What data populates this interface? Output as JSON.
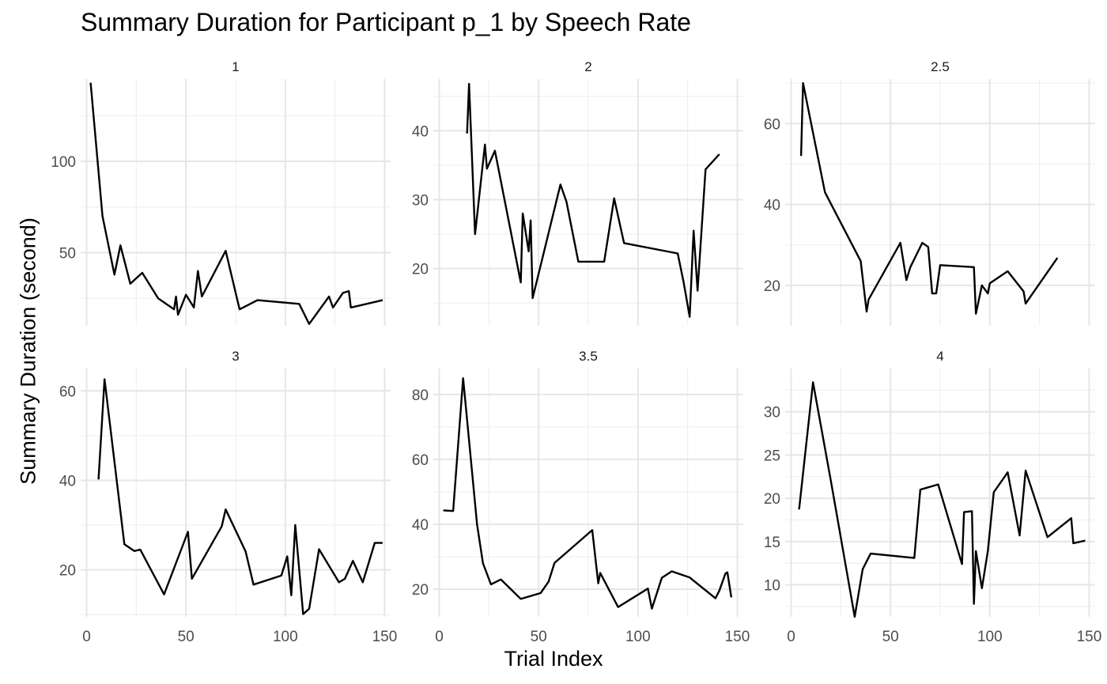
{
  "chart_data": {
    "type": "line",
    "title": "Summary Duration for Participant p_1 by Speech Rate",
    "xlabel": "Trial Index",
    "ylabel": "Summary Duration (second)",
    "x_ticks": [
      0,
      50,
      100,
      150
    ],
    "xlim": [
      -3,
      153
    ],
    "grid": true,
    "line_color": "#000000",
    "panels": [
      {
        "label": "1",
        "ylim": [
          10,
          145
        ],
        "y_ticks": [
          50,
          100
        ],
        "x": [
          2,
          8,
          14,
          17,
          22,
          28,
          36,
          44,
          45,
          46,
          50,
          54,
          56,
          58,
          70,
          77,
          86,
          107,
          112,
          122,
          124,
          129,
          132,
          133,
          149
        ],
        "y": [
          143,
          70,
          38,
          54,
          33,
          39,
          25,
          19,
          26,
          16,
          27,
          20,
          40,
          26,
          51,
          19,
          24,
          22,
          11,
          26,
          20,
          28,
          29,
          20,
          24
        ]
      },
      {
        "label": "2",
        "ylim": [
          11.7,
          47.5
        ],
        "y_ticks": [
          20,
          30,
          40
        ],
        "x": [
          14,
          15,
          18,
          23,
          24,
          28,
          41,
          42,
          45,
          46,
          47,
          61,
          64,
          70,
          83,
          88,
          93,
          120,
          123,
          126,
          128,
          130,
          134,
          141
        ],
        "y": [
          39.6,
          46.8,
          25,
          38,
          34.5,
          37.1,
          18,
          28,
          22.5,
          27,
          15.7,
          32.2,
          29.7,
          21,
          21,
          30.2,
          23.7,
          22.2,
          18,
          13,
          25.5,
          16.8,
          34.4,
          36.6
        ]
      },
      {
        "label": "2.5",
        "ylim": [
          10,
          71
        ],
        "y_ticks": [
          20,
          40,
          60
        ],
        "x": [
          5,
          6,
          17,
          35,
          38,
          39,
          55,
          58,
          60,
          62,
          66,
          69,
          71,
          73,
          75,
          92,
          93,
          96,
          99,
          100,
          109,
          117,
          118,
          134
        ],
        "y": [
          52,
          70,
          43,
          26,
          13.5,
          16.5,
          30.5,
          21.3,
          24.5,
          26.5,
          30.5,
          29.5,
          18,
          18,
          25,
          24.5,
          13,
          20,
          18,
          20.5,
          23.5,
          18.5,
          15.5,
          26.8
        ]
      },
      {
        "label": "3",
        "ylim": [
          9.5,
          65
        ],
        "y_ticks": [
          20,
          40,
          60
        ],
        "x": [
          6,
          9,
          19,
          24,
          27,
          39,
          51,
          53,
          68,
          70,
          80,
          84,
          98,
          101,
          103,
          105,
          109,
          112,
          117,
          127,
          130,
          134,
          139,
          145,
          149
        ],
        "y": [
          40.2,
          62.6,
          25.7,
          24.2,
          24.5,
          14.5,
          28.5,
          18,
          29.7,
          33.5,
          24.1,
          16.7,
          18.7,
          23,
          14.3,
          30,
          10.1,
          11.3,
          24.6,
          17.2,
          18,
          22,
          17.2,
          26,
          26
        ]
      },
      {
        "label": "3.5",
        "ylim": [
          11.5,
          88
        ],
        "y_ticks": [
          20,
          40,
          60,
          80
        ],
        "x": [
          2,
          7,
          12,
          19,
          22,
          26,
          31,
          41,
          51,
          55,
          58,
          77,
          80,
          81,
          90,
          105,
          107,
          112,
          117,
          126,
          139,
          141,
          144,
          145,
          147
        ],
        "y": [
          44.3,
          44.1,
          85,
          40,
          28,
          21.5,
          23,
          17,
          18.8,
          22.3,
          28.1,
          38.2,
          21.8,
          25,
          14.5,
          20.2,
          14,
          23.5,
          25.5,
          23.6,
          17.2,
          19.6,
          24.8,
          25.2,
          17.5
        ]
      },
      {
        "label": "4",
        "ylim": [
          6.3,
          35
        ],
        "y_ticks": [
          10,
          15,
          20,
          25,
          30
        ],
        "x": [
          4,
          11,
          20,
          32,
          36,
          40,
          62,
          65,
          74,
          86,
          87,
          91,
          92,
          93,
          96,
          99,
          102,
          109,
          115,
          118,
          129,
          141,
          142,
          148
        ],
        "y": [
          18.7,
          33.4,
          22,
          6.3,
          11.8,
          13.6,
          13.1,
          21,
          21.6,
          12.4,
          18.4,
          18.5,
          7.8,
          13.9,
          9.6,
          13.9,
          20.7,
          23,
          15.7,
          23.2,
          15.5,
          17.7,
          14.8,
          15.1
        ]
      }
    ]
  }
}
